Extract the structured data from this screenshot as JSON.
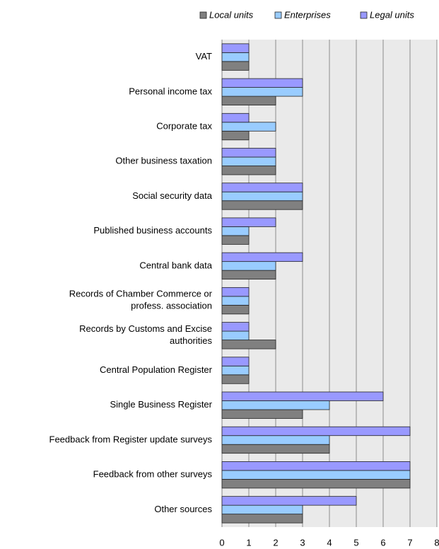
{
  "chart_data": {
    "type": "bar",
    "orientation": "horizontal",
    "categories": [
      "VAT",
      "Personal income tax",
      "Corporate tax",
      "Other business taxation",
      "Social security data",
      "Published business accounts",
      "Central bank data",
      "Records of Chamber Commerce or\nprofess. association",
      "Records by Customs and Excise\nauthorities",
      "Central Population Register",
      "Single Business Register",
      "Feedback from Register update surveys",
      "Feedback from other surveys",
      "Other sources"
    ],
    "series": [
      {
        "name": "Local units",
        "color": "#808080",
        "values": [
          1,
          2,
          1,
          2,
          3,
          1,
          2,
          1,
          2,
          1,
          3,
          4,
          7,
          3
        ]
      },
      {
        "name": "Enterprises",
        "color": "#99ccff",
        "values": [
          1,
          3,
          2,
          2,
          3,
          1,
          2,
          1,
          1,
          1,
          4,
          4,
          7,
          3
        ]
      },
      {
        "name": "Legal units",
        "color": "#9999ff",
        "values": [
          1,
          3,
          1,
          2,
          3,
          2,
          3,
          1,
          1,
          1,
          6,
          7,
          7,
          5
        ]
      }
    ],
    "xlim": [
      0,
      8
    ],
    "xticks": [
      0,
      1,
      2,
      3,
      4,
      5,
      6,
      7,
      8
    ],
    "grid": true,
    "legend": "top"
  }
}
